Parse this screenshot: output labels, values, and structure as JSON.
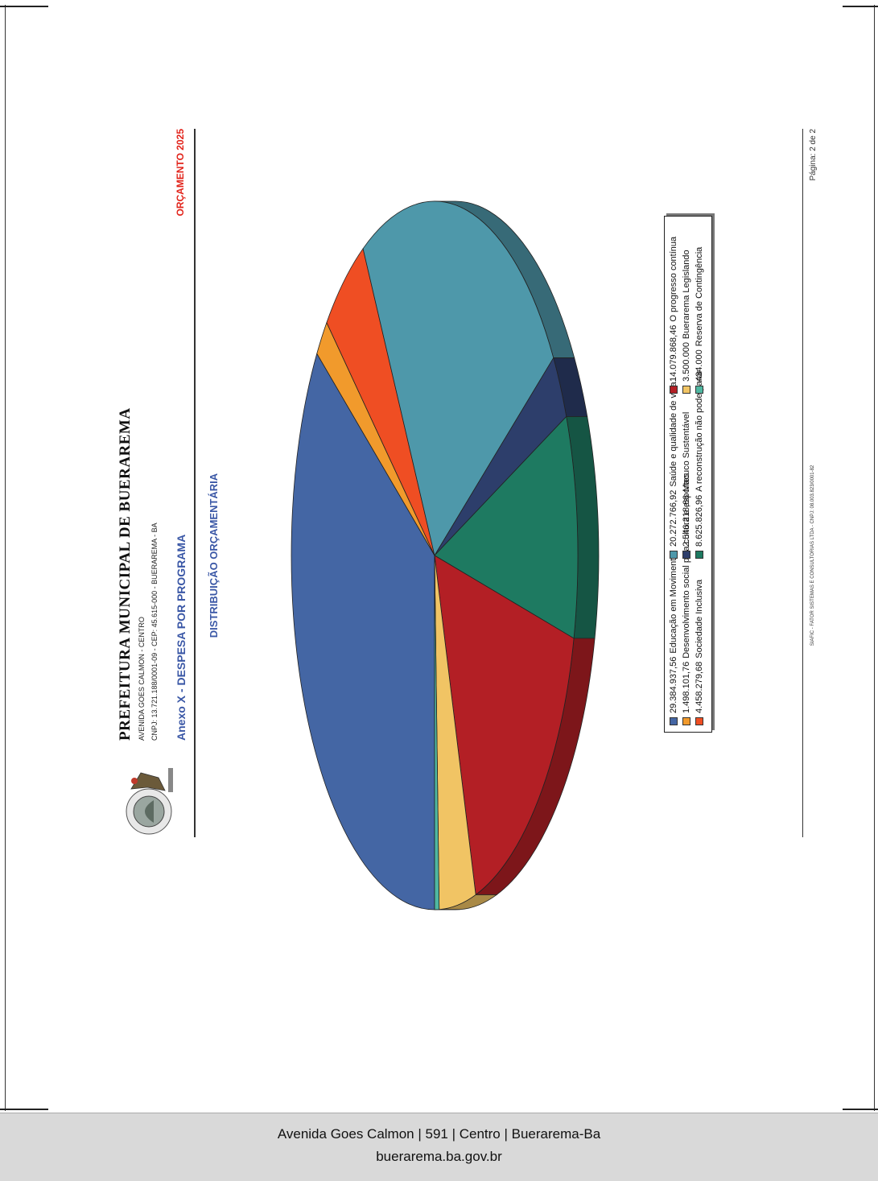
{
  "header": {
    "title": "PREFEITURA MUNICIPAL DE BUERAREMA",
    "address": "AVENIDA GOES CALMON - CENTRO",
    "cnpj_line": "CNPJ: 13.721.188/0001-09 - CEP: 45.615-000 - BUERAREMA - BA",
    "annex": "Anexo X - DESPESA POR PROGRAMA",
    "budget_label": "ORÇAMENTO 2025",
    "logo_text": "PREFEITURA MUNICIPAL BUERAREMA"
  },
  "colors": {
    "title_blue": "#3a57a6",
    "budget_red": "#e2231a"
  },
  "chart_data": {
    "type": "pie",
    "title": "DISTRIBUIÇÃO ORÇAMENTÁRIA",
    "slices": [
      {
        "value_label": "29.384.937,56",
        "label": "Educação em Movimento",
        "value": 29384937.56,
        "color": "#4466a4"
      },
      {
        "value_label": "1.498.101,76",
        "label": "Desenvolvimento social pela cultura e esportes",
        "value": 1498101.76,
        "color": "#f19a2c"
      },
      {
        "value_label": "4.458.279,68",
        "label": "Sociedade Inclusiva",
        "value": 4458279.68,
        "color": "#ef4e23"
      },
      {
        "value_label": "20.272.766,92",
        "label": "Saúde e qualidade de vida.",
        "value": 20272766.92,
        "color": "#4e98aa"
      },
      {
        "value_label": "2.546.218,66",
        "label": "Macuco Sustentável",
        "value": 2546218.66,
        "color": "#2d3e6b"
      },
      {
        "value_label": "8.625.826,96",
        "label": "A reconstrução não pode parar",
        "value": 8625826.96,
        "color": "#1e7a61"
      },
      {
        "value_label": "14.079.868,46",
        "label": "O progresso contínua",
        "value": 14079868.46,
        "color": "#b31f25"
      },
      {
        "value_label": "3.500.000",
        "label": "Buerarema Legislando",
        "value": 3500000,
        "color": "#f1c464"
      },
      {
        "value_label": "434.000",
        "label": "Reserva de Contingência",
        "value": 434000,
        "color": "#4fb7a1"
      }
    ],
    "legend_placement": "bottom"
  },
  "footer": {
    "siafic": "SIAFIC - FATOR SISTEMAS E CONSULTORIAS LTDA - CNPJ: 08.003.823/0001-82",
    "page": "Página: 2 de 2"
  },
  "site_footer": {
    "address": "Avenida Goes Calmon | 591 | Centro | Buerarema-Ba",
    "url": "buerarema.ba.gov.br"
  }
}
